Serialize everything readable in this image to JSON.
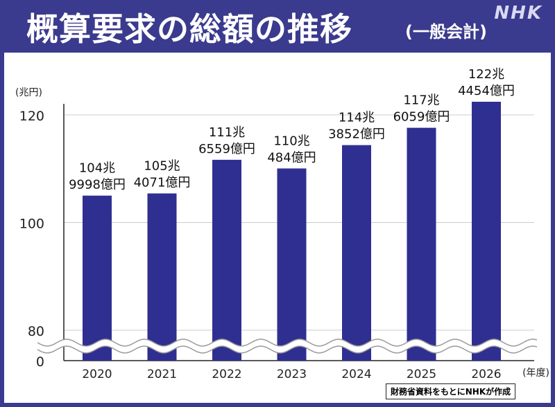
{
  "header": {
    "title": "概算要求の総額の推移",
    "subtitle": "(一般会計)",
    "logo": "NHK"
  },
  "source": "財務省資料をもとにNHKが作成",
  "colors": {
    "bar": "#2f2f91",
    "frame": "#3a3a8e",
    "grid": "#cccccc"
  },
  "chart_data": {
    "type": "bar",
    "title": "概算要求の総額の推移",
    "subtitle": "(一般会計)",
    "ylabel": "(兆円)",
    "xlabel": "(年度)",
    "categories": [
      "2020",
      "2021",
      "2022",
      "2023",
      "2024",
      "2025",
      "2026"
    ],
    "values": [
      104.9998,
      105.4071,
      111.6559,
      110.0484,
      114.3852,
      117.6059,
      122.4454
    ],
    "data_labels": [
      [
        "104兆",
        "9998億円"
      ],
      [
        "105兆",
        "4071億円"
      ],
      [
        "111兆",
        "6559億円"
      ],
      [
        "110兆",
        "484億円"
      ],
      [
        "114兆",
        "3852億円"
      ],
      [
        "117兆",
        "6059億円"
      ],
      [
        "122兆",
        "4454億円"
      ]
    ],
    "ylim": [
      80,
      120
    ],
    "axis_break": "between 0 and 80",
    "y_ticks": [
      "0",
      "80",
      "100",
      "120"
    ],
    "grid": true,
    "legend": "none"
  }
}
